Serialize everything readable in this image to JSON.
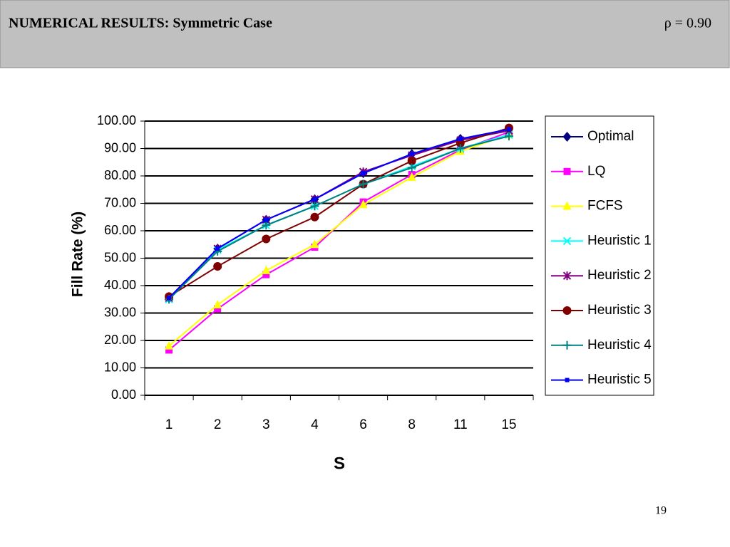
{
  "header": {
    "title": "NUMERICAL RESULTS: Symmetric Case",
    "rho": "ρ = 0.90"
  },
  "page_number": "19",
  "chart_data": {
    "type": "line",
    "x_label": "S",
    "y_label": "Fill Rate (%)",
    "categories": [
      "1",
      "2",
      "3",
      "4",
      "6",
      "8",
      "11",
      "15"
    ],
    "ylim": [
      0,
      100
    ],
    "yticks": [
      {
        "value": 0,
        "label": "0.00"
      },
      {
        "value": 10,
        "label": "10.00"
      },
      {
        "value": 20,
        "label": "20.00"
      },
      {
        "value": 30,
        "label": "30.00"
      },
      {
        "value": 40,
        "label": "40.00"
      },
      {
        "value": 50,
        "label": "50.00"
      },
      {
        "value": 60,
        "label": "60.00"
      },
      {
        "value": 70,
        "label": "70.00"
      },
      {
        "value": 80,
        "label": "80.00"
      },
      {
        "value": 90,
        "label": "90.00"
      },
      {
        "value": 100,
        "label": "100.00"
      }
    ],
    "grid": true,
    "series": [
      {
        "name": "Optimal",
        "color": "#000080",
        "marker": "diamond",
        "values": [
          35.5,
          53.5,
          64,
          71.5,
          81,
          88,
          93.5,
          97
        ]
      },
      {
        "name": "LQ",
        "color": "#ff00ff",
        "marker": "square",
        "values": [
          16.5,
          31.5,
          44,
          54,
          70.5,
          80.5,
          89.5,
          96
        ]
      },
      {
        "name": "FCFS",
        "color": "#ffff00",
        "marker": "triangle",
        "values": [
          18,
          33,
          45.5,
          55,
          69.5,
          79.5,
          89,
          95
        ]
      },
      {
        "name": "Heuristic 1",
        "color": "#00ffff",
        "marker": "x",
        "values": [
          35,
          53,
          62,
          69,
          77,
          83.5,
          90,
          95
        ]
      },
      {
        "name": "Heuristic 2",
        "color": "#800080",
        "marker": "star",
        "values": [
          35.5,
          53.5,
          64,
          71.5,
          81.5,
          87.5,
          93,
          96.5
        ]
      },
      {
        "name": "Heuristic 3",
        "color": "#800000",
        "marker": "circle",
        "values": [
          36,
          47,
          57,
          65,
          77,
          85.5,
          92,
          97.5
        ]
      },
      {
        "name": "Heuristic 4",
        "color": "#008080",
        "marker": "plus",
        "values": [
          35,
          52.5,
          62,
          69,
          77,
          83,
          90,
          94.5
        ]
      },
      {
        "name": "Heuristic 5",
        "color": "#0000ff",
        "marker": "small-square",
        "values": [
          35.5,
          53.5,
          64,
          71.5,
          81,
          88,
          93.5,
          97
        ]
      }
    ]
  }
}
